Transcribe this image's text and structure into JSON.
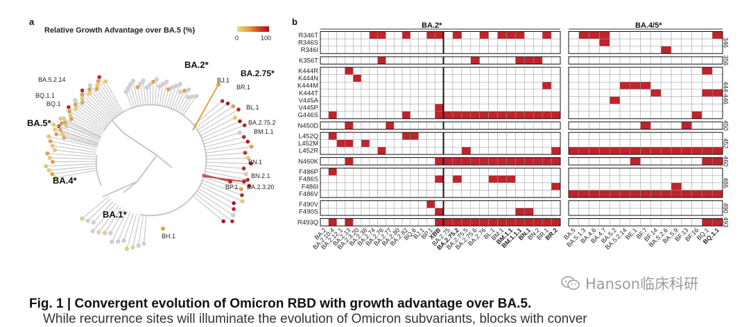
{
  "panel_a": {
    "label": "a",
    "legend_title": "Relative Growth Advantage over BA.5 (%)",
    "legend_min": "0",
    "legend_max": "100",
    "legend_colors": [
      "#e8e07a",
      "#e8a040",
      "#d04020",
      "#b0101a"
    ],
    "clade_labels": [
      "BA.2*",
      "BA.2.75*",
      "BA.5*",
      "BA.4*",
      "BA.1*"
    ],
    "tip_labels": [
      "BA.5.2.14",
      "BQ.1.1",
      "BQ.1",
      "BJ.1",
      "BR.1",
      "BL.1",
      "BA.2.75.2",
      "BM.1.1",
      "BN.1",
      "BN.2.1",
      "BP.1",
      "BA.2.3.20",
      "BH.1"
    ]
  },
  "panel_b": {
    "label": "b",
    "group_titles": [
      "BA.2*",
      "BA.4/5*"
    ],
    "cell_color": "#c0232b",
    "row_blocks": [
      {
        "rows": [
          "R346T",
          "R346S",
          "R346I"
        ],
        "site": "346"
      },
      {
        "rows": [
          "K356T"
        ],
        "site": "356"
      },
      {
        "rows": [
          "K444R",
          "K444N",
          "K444M",
          "K444T",
          "V445A",
          "V445P",
          "G446S"
        ],
        "site": "444-446"
      },
      {
        "rows": [
          "N450D"
        ],
        "site": "450"
      },
      {
        "rows": [
          "L452Q",
          "L452M",
          "L452R"
        ],
        "site": "452"
      },
      {
        "rows": [
          "N460K"
        ],
        "site": "460"
      },
      {
        "rows": [
          "F486P",
          "F486S",
          "F486I",
          "F486V"
        ],
        "site": "486"
      },
      {
        "rows": [
          "F490V",
          "F490S"
        ],
        "site": "490"
      },
      {
        "rows": [
          "R493Q"
        ],
        "site": "493"
      }
    ],
    "column_groups": [
      {
        "columns": [
          "BA.2",
          "BA.2.10.4",
          "BA.2.12.1",
          "BA.2.13",
          "BA.2.3.20",
          "BA.2.38",
          "BA.2.74",
          "BA.2.76",
          "BA.2.77",
          "BA.2.80",
          "BA.2.82",
          "BQ.6",
          "BJ.1",
          "BP.1",
          "XBB"
        ],
        "bold": [
          "XBB"
        ]
      },
      {
        "columns": [
          "BA.2.75",
          "BA.2.75.2",
          "BA.2.75.5",
          "BA.2.75.6",
          "BA.2.76",
          "BL.1",
          "BM.1",
          "BM.1.1",
          "BM.1.1.1",
          "BN.1",
          "BN.2",
          "BR.1",
          "BR.2"
        ],
        "bold": [
          "BA.2.75.2",
          "BM.1.1",
          "BM.1.1.1",
          "BN.1",
          "BR.2"
        ]
      },
      {
        "columns": [
          "BA.5",
          "BA.5.1.3",
          "BA.4.6",
          "BA.4.7",
          "BA.5.2",
          "BA.5.2.14",
          "BE.1",
          "BF.7",
          "BF.14",
          "BA.5.2.6",
          "BA.5.9",
          "BF.13",
          "BF.16",
          "BQ.1",
          "BQ.1.1"
        ],
        "bold": [
          "BQ.1.1"
        ]
      }
    ],
    "filled_cells": {
      "R346T": [
        [
          6,
          7,
          10,
          13,
          14
        ],
        [
          1,
          4,
          6,
          7,
          8,
          11
        ],
        [
          1,
          2,
          3,
          14
        ]
      ],
      "R346S": [
        [],
        [],
        [
          3
        ]
      ],
      "R346I": [
        [],
        [],
        [
          9
        ]
      ],
      "K356T": [
        [
          7
        ],
        [
          3,
          8,
          9,
          10
        ],
        []
      ],
      "K444R": [
        [
          3
        ],
        [],
        [
          13
        ]
      ],
      "K444N": [
        [
          4
        ],
        [],
        []
      ],
      "K444M": [
        [],
        [
          11
        ],
        [
          5,
          6,
          7
        ]
      ],
      "K444T": [
        [],
        [],
        [
          8,
          13,
          14
        ]
      ],
      "V445A": [
        [],
        [],
        [
          4
        ]
      ],
      "V445P": [
        [
          14
        ],
        [],
        []
      ],
      "G446S": [
        [
          1,
          10,
          14
        ],
        [
          0,
          1,
          2,
          3,
          4,
          5,
          6,
          7,
          8,
          9,
          10,
          11,
          12
        ],
        [
          12
        ]
      ],
      "N450D": [
        [
          3,
          8
        ],
        [],
        [
          7,
          11
        ]
      ],
      "L452Q": [
        [
          1,
          10,
          11
        ],
        [],
        []
      ],
      "L452M": [
        [
          2,
          3,
          5
        ],
        [],
        []
      ],
      "L452R": [
        [
          7
        ],
        [
          2,
          12
        ],
        [
          0,
          1,
          2,
          3,
          4,
          5,
          6,
          7,
          8,
          9,
          10,
          11,
          12,
          13,
          14
        ]
      ],
      "N460K": [
        [
          3,
          14
        ],
        [
          0,
          1,
          2,
          3,
          4,
          5,
          6,
          7,
          8,
          9,
          10,
          11,
          12
        ],
        [
          6,
          13,
          14
        ]
      ],
      "F486P": [
        [
          1
        ],
        [],
        []
      ],
      "F486S": [
        [
          14
        ],
        [
          1,
          5,
          6,
          7
        ],
        []
      ],
      "F486I": [
        [],
        [
          12
        ],
        [
          10
        ]
      ],
      "F486V": [
        [],
        [],
        [
          0,
          1,
          2,
          3,
          4,
          5,
          6,
          7,
          8,
          9,
          10,
          11,
          12,
          13,
          14
        ]
      ],
      "F490V": [
        [
          13
        ],
        [],
        []
      ],
      "F490S": [
        [
          14
        ],
        [
          8,
          9
        ],
        []
      ],
      "R493Q": [
        [
          1,
          3,
          14
        ],
        [
          0,
          1,
          2,
          3,
          4,
          5,
          6,
          7,
          8,
          9,
          10,
          11,
          12
        ],
        [
          13,
          14
        ]
      ]
    }
  },
  "caption": "Fig. 1 | Convergent evolution of Omicron RBD with growth advantage over BA.5.",
  "caption_next_line": "While recurrence sites will illuminate the evolution of Omicron subvariants, blocks with conver",
  "watermark": "Hanson临床科研"
}
